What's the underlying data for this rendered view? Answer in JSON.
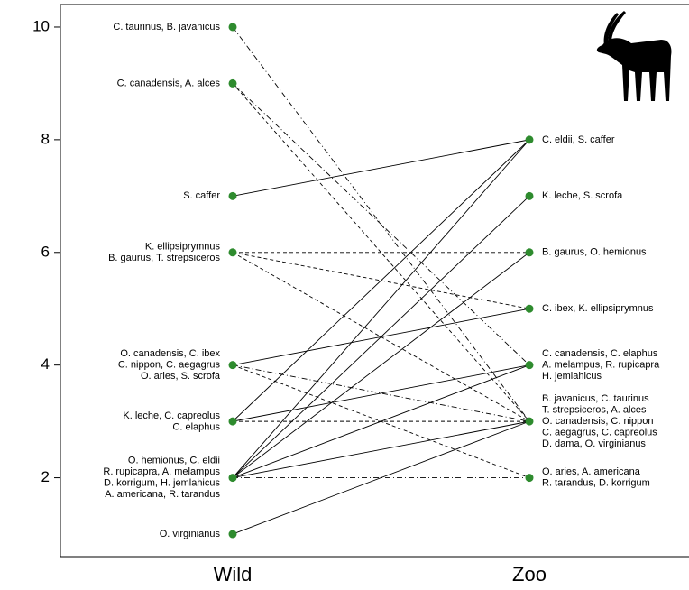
{
  "chart_data": {
    "type": "slope",
    "ylim": [
      0.6,
      10.4
    ],
    "yticks": [
      2,
      4,
      6,
      8,
      10
    ],
    "point_color": "#2e8b2e",
    "line_color": "#000000",
    "groups": [
      {
        "name": "Wild",
        "points": [
          {
            "value": 10,
            "label": [
              "C. taurinus, B. javanicus"
            ]
          },
          {
            "value": 9,
            "label": [
              "C. canadensis, A. alces"
            ]
          },
          {
            "value": 7,
            "label": [
              "S. caffer"
            ]
          },
          {
            "value": 6,
            "label": [
              "K. ellipsiprymnus",
              "B. gaurus, T. strepsiceros"
            ]
          },
          {
            "value": 4,
            "label": [
              "O. canadensis, C. ibex",
              "C. nippon, C. aegagrus",
              "O. aries, S. scrofa"
            ]
          },
          {
            "value": 3,
            "label": [
              "K. leche, C. capreolus",
              "C. elaphus"
            ]
          },
          {
            "value": 2,
            "label": [
              "O. hemionus, C. eldii",
              "R. rupicapra, A. melampus",
              "D. korrigum, H. jemlahicus",
              "A. americana, R. tarandus"
            ]
          },
          {
            "value": 1,
            "label": [
              "O. virginianus"
            ]
          }
        ]
      },
      {
        "name": "Zoo",
        "points": [
          {
            "value": 8,
            "label": [
              "C. eldii, S. caffer"
            ]
          },
          {
            "value": 7,
            "label": [
              "K. leche, S. scrofa"
            ]
          },
          {
            "value": 6,
            "label": [
              "B. gaurus, O. hemionus"
            ]
          },
          {
            "value": 5,
            "label": [
              "C. ibex, K. ellipsiprymnus"
            ]
          },
          {
            "value": 4,
            "label": [
              "C. canadensis, C. elaphus",
              "A. melampus, R. rupicapra",
              "H. jemlahicus"
            ]
          },
          {
            "value": 3,
            "label": [
              "B. javanicus, C. taurinus",
              "T. strepsiceros, A. alces",
              "O. canadensis, C. nippon",
              "C. aegagrus, C. capreolus",
              "D. dama, O. virginianus"
            ]
          },
          {
            "value": 2,
            "label": [
              "O. aries, A. americana",
              "R. tarandus, D. korrigum"
            ]
          }
        ]
      }
    ],
    "links": [
      {
        "wild": 10,
        "zoo": 3,
        "style": "dotdash"
      },
      {
        "wild": 9,
        "zoo": 4,
        "style": "dotdash"
      },
      {
        "wild": 9,
        "zoo": 3,
        "style": "dashed"
      },
      {
        "wild": 7,
        "zoo": 8,
        "style": "solid"
      },
      {
        "wild": 6,
        "zoo": 6,
        "style": "dashed"
      },
      {
        "wild": 6,
        "zoo": 5,
        "style": "dashed"
      },
      {
        "wild": 6,
        "zoo": 3,
        "style": "dashed"
      },
      {
        "wild": 4,
        "zoo": 5,
        "style": "solid"
      },
      {
        "wild": 4,
        "zoo": 3,
        "style": "dotdash"
      },
      {
        "wild": 4,
        "zoo": 2,
        "style": "dashed"
      },
      {
        "wild": 3,
        "zoo": 8,
        "style": "solid"
      },
      {
        "wild": 3,
        "zoo": 4,
        "style": "solid"
      },
      {
        "wild": 3,
        "zoo": 3,
        "style": "dashed"
      },
      {
        "wild": 2,
        "zoo": 7,
        "style": "solid"
      },
      {
        "wild": 2,
        "zoo": 6,
        "style": "solid"
      },
      {
        "wild": 2,
        "zoo": 8,
        "style": "solid"
      },
      {
        "wild": 2,
        "zoo": 4,
        "style": "solid"
      },
      {
        "wild": 2,
        "zoo": 3,
        "style": "solid"
      },
      {
        "wild": 2,
        "zoo": 2,
        "style": "dotdash"
      },
      {
        "wild": 1,
        "zoo": 3,
        "style": "solid"
      }
    ]
  }
}
